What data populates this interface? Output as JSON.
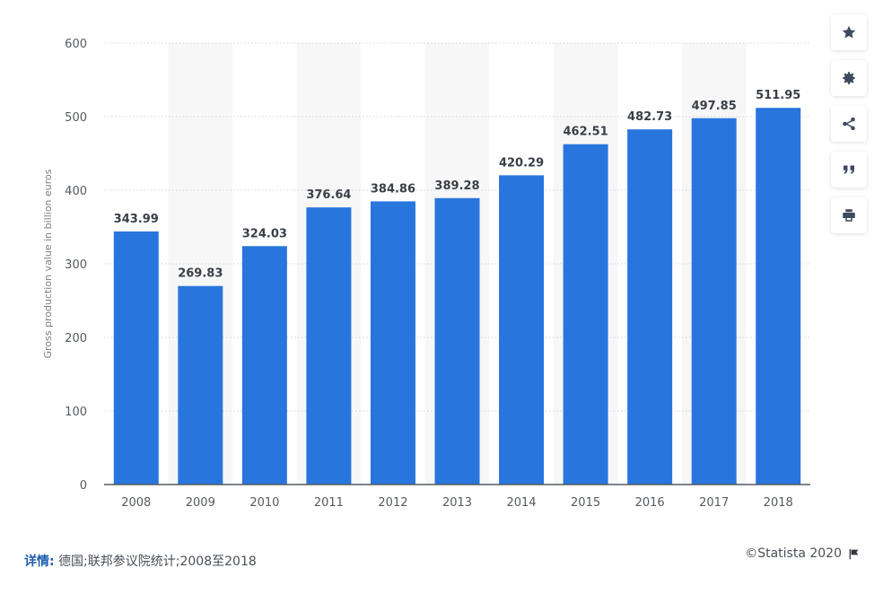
{
  "chart_data": {
    "type": "bar",
    "title": "",
    "xlabel": "",
    "ylabel": "Gross production value in billion euros",
    "categories": [
      "2008",
      "2009",
      "2010",
      "2011",
      "2012",
      "2013",
      "2014",
      "2015",
      "2016",
      "2017",
      "2018"
    ],
    "values": [
      343.99,
      269.83,
      324.03,
      376.64,
      384.86,
      389.28,
      420.29,
      462.51,
      482.73,
      497.85,
      511.95
    ],
    "value_labels": [
      "343.99",
      "269.83",
      "324.03",
      "376.64",
      "384.86",
      "389.28",
      "420.29",
      "462.51",
      "482.73",
      "497.85",
      "511.95"
    ],
    "ylim": [
      0,
      600
    ],
    "yticks": [
      "0",
      "100",
      "200",
      "300",
      "400",
      "500",
      "600"
    ],
    "grid": true,
    "bar_color": "#2876dd"
  },
  "toolbar": {
    "items": [
      {
        "name": "favorite-button",
        "icon": "star-icon"
      },
      {
        "name": "settings-button",
        "icon": "gear-icon"
      },
      {
        "name": "share-button",
        "icon": "share-icon"
      },
      {
        "name": "cite-button",
        "icon": "quote-icon"
      },
      {
        "name": "print-button",
        "icon": "print-icon"
      }
    ]
  },
  "footer": {
    "details_label": "详情:",
    "details_text": "德国;联邦参议院统计;2008至2018",
    "copyright": "©Statista 2020",
    "flag_icon": "flag-icon"
  }
}
